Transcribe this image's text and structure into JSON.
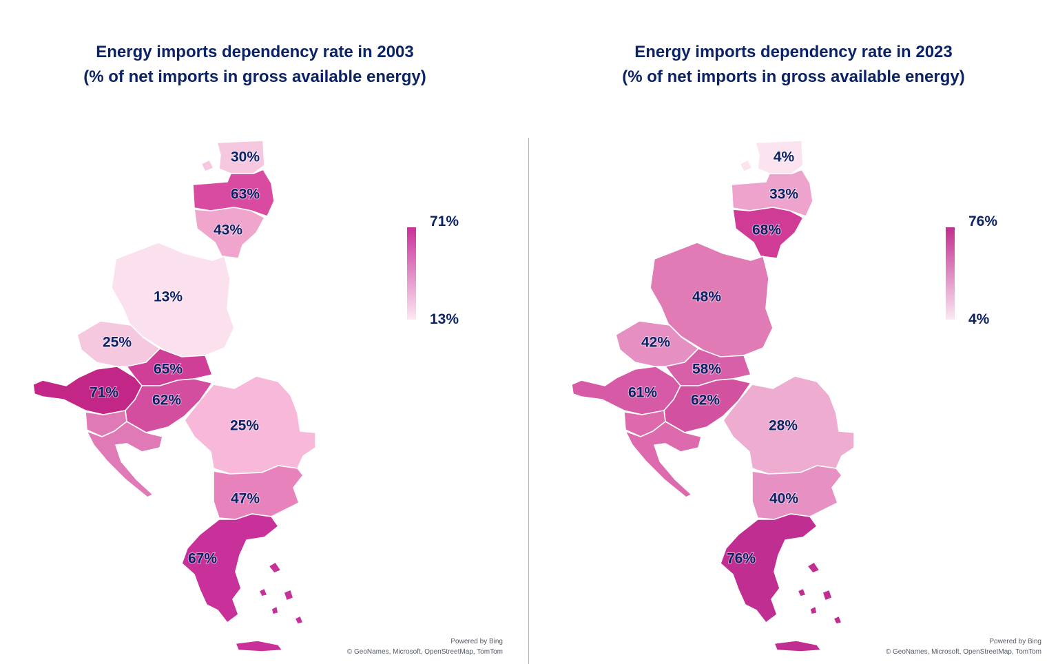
{
  "maps": [
    {
      "title_line1": "Energy imports dependency rate in 2003",
      "title_line2": "(% of net imports in gross available energy)",
      "legend": {
        "max": "71%",
        "min": "13%"
      },
      "colors": {
        "estonia": "#f6c8df",
        "latvia": "#d94ba0",
        "lithuania": "#f0a6cc",
        "poland": "#fbe1ee",
        "czechia": "#f6c8df",
        "slovakia": "#cf3f97",
        "austria": "#c22687",
        "hungary": "#d34e9f",
        "slovenia": "#e07ab6",
        "croatia": "#e07ab6",
        "romania": "#f8b8d9",
        "bulgaria": "#e782bd",
        "greece": "#c9319a",
        "cyprus": "#c9319a"
      },
      "labels": {
        "estonia": "30%",
        "latvia": "63%",
        "lithuania": "43%",
        "poland": "13%",
        "czechia": "25%",
        "slovakia": "65%",
        "austria": "71%",
        "hungary": "62%",
        "romania": "25%",
        "bulgaria": "47%",
        "greece": "67%"
      },
      "credit_line1": "Powered by Bing",
      "credit_line2": "© GeoNames, Microsoft, OpenStreetMap, TomTom"
    },
    {
      "title_line1": "Energy imports dependency rate in 2023",
      "title_line2": "(% of net imports in gross available energy)",
      "legend": {
        "max": "76%",
        "min": "4%"
      },
      "colors": {
        "estonia": "#fbe3ef",
        "latvia": "#eda3cb",
        "lithuania": "#cf3b95",
        "poland": "#e07bb6",
        "czechia": "#e68fc2",
        "slovakia": "#d860a9",
        "austria": "#d65aa6",
        "hungary": "#d2529f",
        "slovenia": "#dc6aac",
        "croatia": "#dc6aac",
        "romania": "#eeadd0",
        "bulgaria": "#e690c3",
        "greece": "#c12e91",
        "cyprus": "#c12e91"
      },
      "labels": {
        "estonia": "4%",
        "latvia": "33%",
        "lithuania": "68%",
        "poland": "48%",
        "czechia": "42%",
        "slovakia": "58%",
        "austria": "61%",
        "hungary": "62%",
        "romania": "28%",
        "bulgaria": "40%",
        "greece": "76%"
      },
      "credit_line1": "Powered by Bing",
      "credit_line2": "© GeoNames, Microsoft, OpenStreetMap, TomTom"
    }
  ]
}
